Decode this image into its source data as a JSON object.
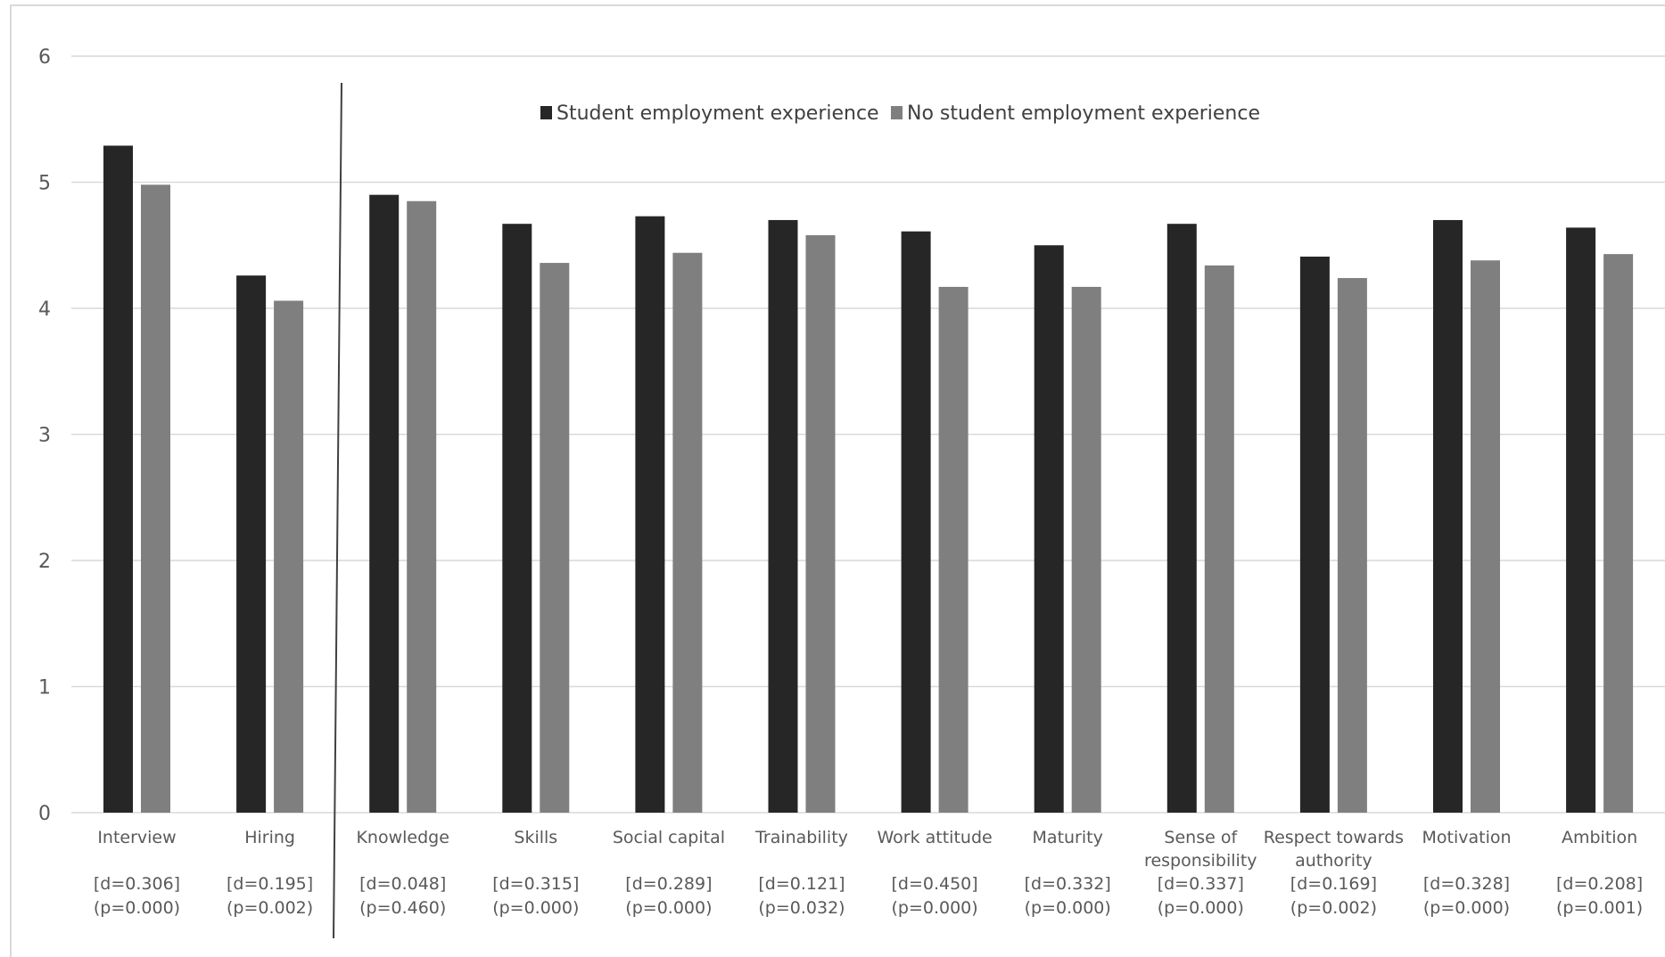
{
  "chart_data": {
    "type": "bar",
    "ylim": [
      0,
      6
    ],
    "yticks": [
      "0",
      "1",
      "2",
      "3",
      "4",
      "5",
      "6"
    ],
    "grid": true,
    "legend_position": "top",
    "categories": [
      {
        "label": [
          "Interview"
        ],
        "d": "[d=0.306]",
        "p": "(p=0.000)"
      },
      {
        "label": [
          "Hiring"
        ],
        "d": "[d=0.195]",
        "p": "(p=0.002)"
      },
      {
        "label": [
          "Knowledge"
        ],
        "d": "[d=0.048]",
        "p": "(p=0.460)"
      },
      {
        "label": [
          "Skills"
        ],
        "d": "[d=0.315]",
        "p": "(p=0.000)"
      },
      {
        "label": [
          "Social capital"
        ],
        "d": "[d=0.289]",
        "p": "(p=0.000)"
      },
      {
        "label": [
          "Trainability"
        ],
        "d": "[d=0.121]",
        "p": "(p=0.032)"
      },
      {
        "label": [
          "Work attitude"
        ],
        "d": "[d=0.450]",
        "p": "(p=0.000)"
      },
      {
        "label": [
          "Maturity"
        ],
        "d": "[d=0.332]",
        "p": "(p=0.000)"
      },
      {
        "label": [
          "Sense of",
          "responsibility"
        ],
        "d": "[d=0.337]",
        "p": "(p=0.000)"
      },
      {
        "label": [
          "Respect towards",
          "authority"
        ],
        "d": "[d=0.169]",
        "p": "(p=0.002)"
      },
      {
        "label": [
          "Motivation"
        ],
        "d": "[d=0.328]",
        "p": "(p=0.000)"
      },
      {
        "label": [
          "Ambition"
        ],
        "d": "[d=0.208]",
        "p": "(p=0.001)"
      }
    ],
    "series": [
      {
        "name": "Student employment experience",
        "color": "#262626",
        "values": [
          5.29,
          4.26,
          4.9,
          4.67,
          4.73,
          4.7,
          4.61,
          4.5,
          4.67,
          4.41,
          4.7,
          4.64
        ]
      },
      {
        "name": "No student employment experience",
        "color": "#7f7f7f",
        "values": [
          4.98,
          4.06,
          4.85,
          4.36,
          4.44,
          4.58,
          4.17,
          4.17,
          4.34,
          4.24,
          4.38,
          4.43
        ]
      }
    ]
  }
}
